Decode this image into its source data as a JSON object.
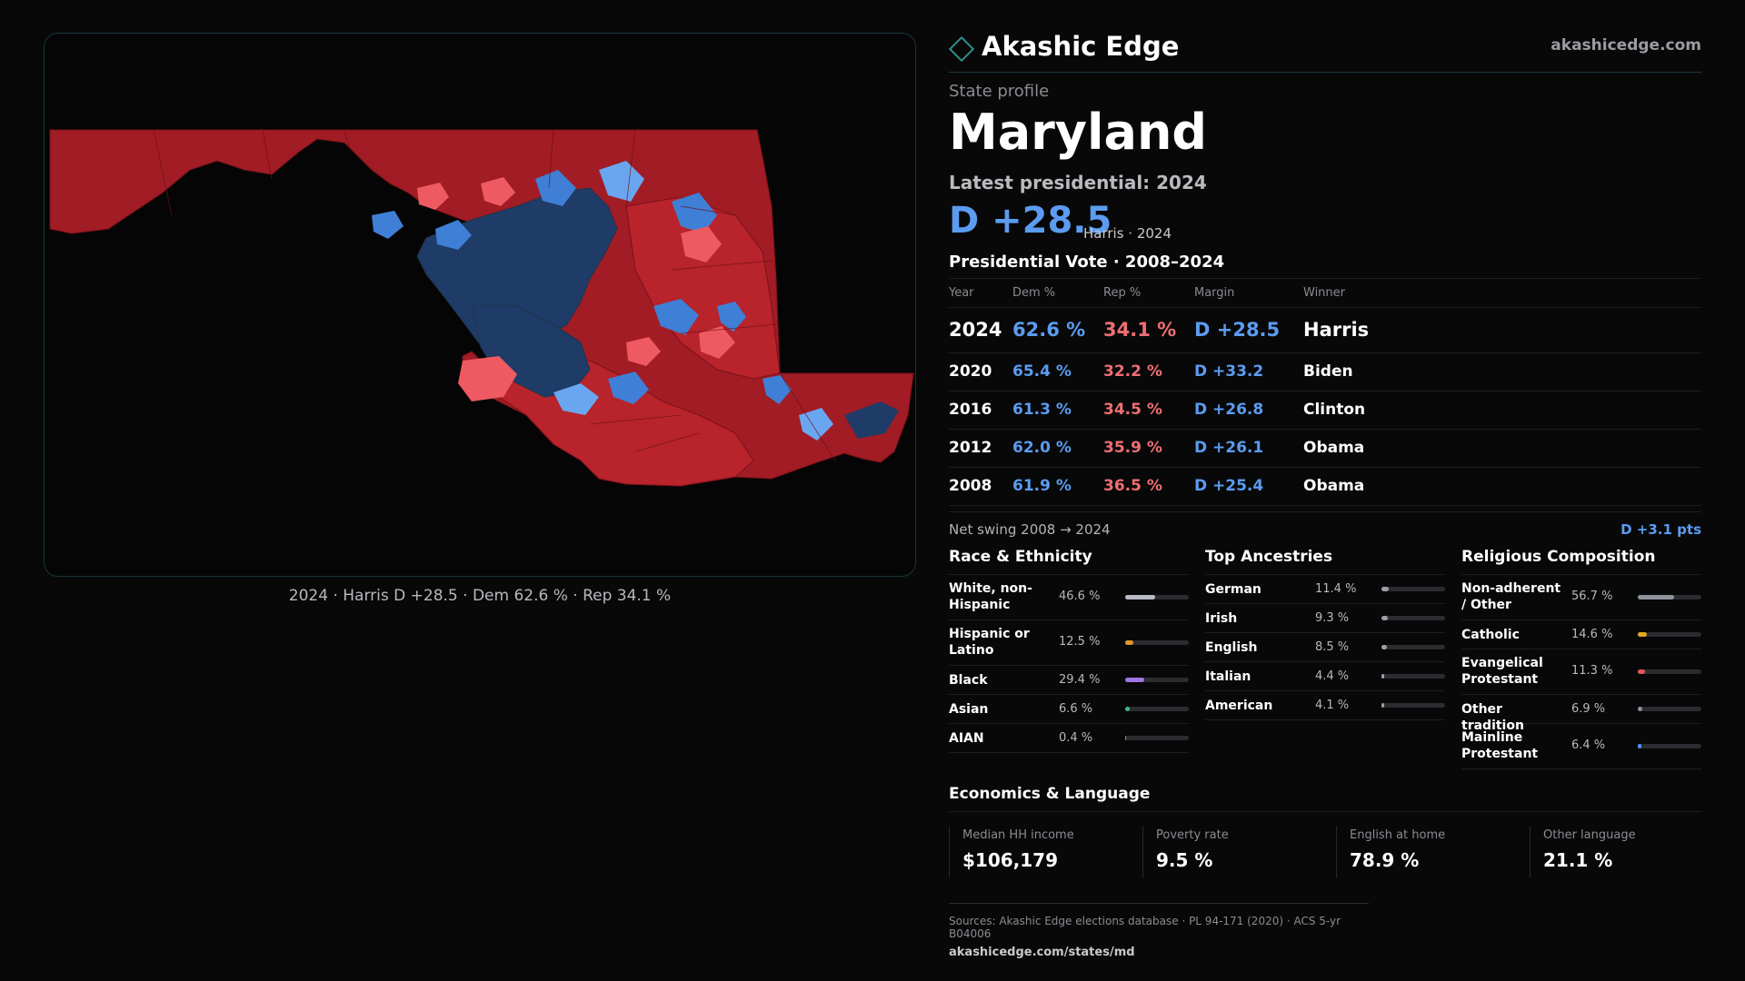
{
  "header": {
    "brand": "Akashic Edge",
    "domain": "akashicedge.com"
  },
  "profile": {
    "eyebrow": "State profile",
    "state": "Maryland",
    "latest_label": "Latest presidential: 2024",
    "margin": "D +28.5",
    "margin_sub": "Harris · 2024"
  },
  "map": {
    "caption": "2024 · Harris D +28.5 · Dem 62.6 % · Rep 34.1 %",
    "colors": {
      "dark_rep": "#a11c24",
      "rep": "#c22a32",
      "light_rep": "#ef5962",
      "dark_dem": "#1f3b68",
      "dem": "#3f7fd6",
      "light_dem": "#6aa6f0",
      "border": "#22344a"
    }
  },
  "vote": {
    "title": "Presidential Vote · 2008–2024",
    "headers": [
      "Year",
      "Dem %",
      "Rep %",
      "Margin",
      "Winner"
    ],
    "rows": [
      {
        "year": "2024",
        "dem": "62.6 %",
        "rep": "34.1 %",
        "margin": "D +28.5",
        "winner": "Harris"
      },
      {
        "year": "2020",
        "dem": "65.4 %",
        "rep": "32.2 %",
        "margin": "D +33.2",
        "winner": "Biden"
      },
      {
        "year": "2016",
        "dem": "61.3 %",
        "rep": "34.5 %",
        "margin": "D +26.8",
        "winner": "Clinton"
      },
      {
        "year": "2012",
        "dem": "62.0 %",
        "rep": "35.9 %",
        "margin": "D +26.1",
        "winner": "Obama"
      },
      {
        "year": "2008",
        "dem": "61.9 %",
        "rep": "36.5 %",
        "margin": "D +25.4",
        "winner": "Obama"
      }
    ],
    "swing_label": "Net swing 2008 → 2024",
    "swing_value": "D +3.1 pts"
  },
  "race": {
    "title": "Race & Ethnicity",
    "items": [
      {
        "label": "White, non-Hispanic",
        "pct": "46.6 %",
        "value": 0.466,
        "color": "#b9bcc4"
      },
      {
        "label": "Hispanic or Latino",
        "pct": "12.5 %",
        "value": 0.125,
        "color": "#e1962f"
      },
      {
        "label": "Black",
        "pct": "29.4 %",
        "value": 0.294,
        "color": "#9b78e6"
      },
      {
        "label": "Asian",
        "pct": "6.6 %",
        "value": 0.066,
        "color": "#3db58c"
      },
      {
        "label": "AIAN",
        "pct": "0.4 %",
        "value": 0.004,
        "color": "#d97a3a"
      }
    ]
  },
  "ancestry": {
    "title": "Top Ancestries",
    "items": [
      {
        "label": "German",
        "pct": "11.4 %",
        "value": 0.114,
        "color": "#9c9fa6"
      },
      {
        "label": "Irish",
        "pct": "9.3 %",
        "value": 0.093,
        "color": "#9c9fa6"
      },
      {
        "label": "English",
        "pct": "8.5 %",
        "value": 0.085,
        "color": "#9c9fa6"
      },
      {
        "label": "Italian",
        "pct": "4.4 %",
        "value": 0.044,
        "color": "#9c9fa6"
      },
      {
        "label": "American",
        "pct": "4.1 %",
        "value": 0.041,
        "color": "#9c9fa6"
      }
    ]
  },
  "religion": {
    "title": "Religious Composition",
    "items": [
      {
        "label": "Non-adherent / Other",
        "pct": "56.7 %",
        "value": 0.567,
        "color": "#8e929a"
      },
      {
        "label": "Catholic",
        "pct": "14.6 %",
        "value": 0.146,
        "color": "#e0a825"
      },
      {
        "label": "Evangelical Protestant",
        "pct": "11.3 %",
        "value": 0.113,
        "color": "#e0575b"
      },
      {
        "label": "Other tradition",
        "pct": "6.9 %",
        "value": 0.069,
        "color": "#8e929a"
      },
      {
        "label": "Mainline Protestant",
        "pct": "6.4 %",
        "value": 0.064,
        "color": "#4d8ff0"
      }
    ]
  },
  "economics": {
    "title": "Economics & Language",
    "items": [
      {
        "label": "Median HH income",
        "value": "$106,179"
      },
      {
        "label": "Poverty rate",
        "value": "9.5 %"
      },
      {
        "label": "English at home",
        "value": "78.9 %"
      },
      {
        "label": "Other language",
        "value": "21.1 %"
      }
    ]
  },
  "footer": {
    "sources": "Sources: Akashic Edge elections database · PL 94-171 (2020) · ACS 5-yr B04006",
    "url": "akashicedge.com/states/md"
  }
}
